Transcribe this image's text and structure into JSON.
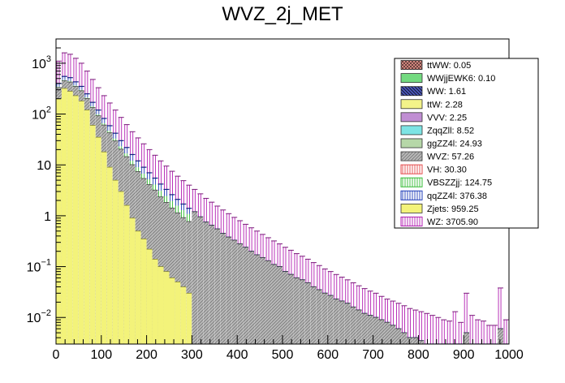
{
  "chart_data": {
    "type": "bar",
    "subtype": "stacked-histogram",
    "title": "WVZ_2j_MET",
    "xlabel": "",
    "ylabel": "",
    "xlim": [
      0,
      1000
    ],
    "ylim": [
      0.003,
      3000
    ],
    "yscale": "log",
    "bin_width": 12.5,
    "x_ticks": [
      0,
      100,
      200,
      300,
      400,
      500,
      600,
      700,
      800,
      900,
      1000
    ],
    "x_tick_labels": [
      "0",
      "100",
      "200",
      "300",
      "400",
      "500",
      "600",
      "700",
      "800",
      "900",
      "1000"
    ],
    "y_ticks": [
      0.01,
      0.1,
      1,
      10,
      100,
      1000
    ],
    "y_tick_labels": [
      {
        "base": "10",
        "exp": "−2"
      },
      {
        "base": "10",
        "exp": "−1"
      },
      {
        "base": "1",
        "exp": ""
      },
      {
        "base": "10",
        "exp": ""
      },
      {
        "base": "10",
        "exp": "2"
      },
      {
        "base": "10",
        "exp": "3"
      }
    ],
    "legend_position": "top-right",
    "legend": [
      {
        "name": "ttWW",
        "label": "ttWW: 0.05",
        "color": "#d2867e",
        "pattern": "check"
      },
      {
        "name": "WWjjEWK6",
        "label": "WWjjEWK6: 0.10",
        "color": "#73da80",
        "pattern": "solid"
      },
      {
        "name": "WW",
        "label": "WW: 1.61",
        "color": "#4a56b8",
        "pattern": "diag"
      },
      {
        "name": "ttW",
        "label": "ttW: 2.28",
        "color": "#f3f389",
        "pattern": "solid"
      },
      {
        "name": "VVV",
        "label": "VVV: 2.25",
        "color": "#c08ed3",
        "pattern": "solid"
      },
      {
        "name": "ZqqZll",
        "label": "ZqqZll: 8.52",
        "color": "#7de4e4",
        "pattern": "solid"
      },
      {
        "name": "ggZZ4l",
        "label": "ggZZ4l: 24.93",
        "color": "#b6d7a8",
        "pattern": "solid"
      },
      {
        "name": "WVZ",
        "label": "WVZ: 57.26",
        "color": "#b8b8b8",
        "pattern": "hatch"
      },
      {
        "name": "VH",
        "label": "VH: 30.30",
        "color": "#e34a4a",
        "pattern": "vlines"
      },
      {
        "name": "VBSZZjj",
        "label": "VBSZZjj: 124.75",
        "color": "#33bb33",
        "pattern": "vlines"
      },
      {
        "name": "qqZZ4l",
        "label": "qqZZ4l: 376.38",
        "color": "#1f3cb8",
        "pattern": "vlines"
      },
      {
        "name": "Zjets",
        "label": "Zjets: 959.25",
        "color": "#f3f37a",
        "pattern": "solid"
      },
      {
        "name": "WZ",
        "label": "WZ: 3705.90",
        "color": "#b21fb2",
        "pattern": "vlines"
      }
    ],
    "stack_order_bottom_to_top": [
      "WWjjEWK6",
      "ttWW",
      "Zjets",
      "ttW",
      "ZqqZll",
      "VVV",
      "ggZZ4l",
      "WVZ",
      "VH",
      "VBSZZjj",
      "qqZZ4l",
      "WZ"
    ],
    "total_stack": [
      1100,
      1600,
      1500,
      1250,
      1000,
      700,
      480,
      330,
      230,
      165,
      120,
      86,
      62,
      45,
      34,
      26,
      20,
      15.5,
      12,
      9.5,
      7.5,
      6,
      4.9,
      4,
      3.3,
      2.7,
      2.2,
      1.85,
      1.55,
      1.3,
      1.1,
      0.93,
      0.8,
      0.68,
      0.58,
      0.5,
      0.43,
      0.37,
      0.32,
      0.28,
      0.24,
      0.21,
      0.18,
      0.16,
      0.14,
      0.12,
      0.105,
      0.09,
      0.08,
      0.07,
      0.062,
      0.055,
      0.048,
      0.042,
      0.037,
      0.033,
      0.03,
      0.026,
      0.023,
      0.021,
      0.019,
      0.017,
      0.015,
      0.014,
      0.013,
      0.012,
      0.011,
      0.01,
      0.009,
      0.0085,
      0.013,
      0.008,
      0.03,
      0.011,
      0.009,
      0.0085,
      0.007,
      0.007,
      0.038,
      0.009
    ],
    "series": [
      {
        "name": "WZ",
        "values": [
          700,
          1050,
          980,
          820,
          650,
          450,
          310,
          210,
          148,
          106,
          78,
          56,
          40,
          29,
          22,
          17,
          13,
          10,
          7.8,
          6.2,
          4.9,
          3.9,
          3.2,
          2.6,
          2.1,
          1.75,
          1.45,
          1.2,
          1.0,
          0.85,
          0.72,
          0.6,
          0.52,
          0.44,
          0.38,
          0.33,
          0.28,
          0.24,
          0.21,
          0.18,
          0.16,
          0.14,
          0.12,
          0.105,
          0.092,
          0.08,
          0.07,
          0.06,
          0.053,
          0.047,
          0.041,
          0.036,
          0.032,
          0.028,
          0.025,
          0.022,
          0.02,
          0.017,
          0.015,
          0.014,
          0.013,
          0.012,
          0.011,
          0.01,
          0.0095,
          0.009,
          0.008,
          0.0075,
          0.007,
          0.0065,
          0.01,
          0.006,
          0.025,
          0.008,
          0.007,
          0.0065,
          0.0055,
          0.0055,
          0.032,
          0.007
        ]
      },
      {
        "name": "Zjets",
        "values": [
          200,
          320,
          280,
          230,
          180,
          120,
          60,
          35,
          18,
          9,
          5,
          3,
          1.6,
          0.9,
          0.5,
          0.35,
          0.22,
          0.14,
          0.1,
          0.08,
          0.06,
          0.05,
          0.04,
          0.03
        ]
      },
      {
        "name": "qqZZ4l",
        "values": [
          55,
          80,
          75,
          65,
          50,
          38,
          28,
          21,
          16,
          12,
          9,
          6.8,
          5.2,
          4,
          3,
          2.3,
          1.8,
          1.4,
          1.1,
          0.85,
          0.66,
          0.52,
          0.41,
          0.32
        ]
      },
      {
        "name": "VBSZZjj",
        "values": [
          14,
          20,
          19,
          16,
          13,
          10,
          8,
          6.5,
          5.2,
          4.2,
          3.4,
          2.8,
          2.3,
          1.9,
          1.6,
          1.3,
          1.1,
          0.9,
          0.75,
          0.62,
          0.52,
          0.44,
          0.37,
          0.31
        ]
      },
      {
        "name": "WVZ",
        "values": [
          8,
          11,
          10,
          9,
          7.5,
          6,
          4.8,
          3.9,
          3.2,
          2.6,
          2.1,
          1.7,
          1.4,
          1.15,
          0.95,
          0.78,
          0.64,
          0.53,
          0.44,
          0.36,
          0.3,
          0.25,
          0.21,
          0.17
        ]
      }
    ]
  }
}
